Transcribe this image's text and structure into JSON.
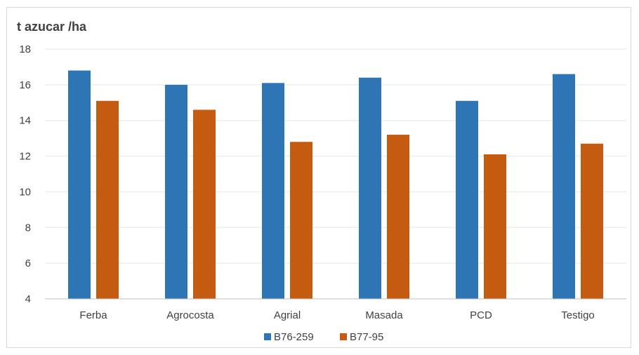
{
  "chart_data": {
    "type": "bar",
    "title": "",
    "xlabel": "",
    "ylabel": "t azucar /ha",
    "categories": [
      "Ferba",
      "Agrocosta",
      "Agrial",
      "Masada",
      "PCD",
      "Testigo"
    ],
    "series": [
      {
        "name": "B76-259",
        "color": "#2e75b6",
        "values": [
          16.8,
          16.0,
          16.1,
          16.4,
          15.1,
          16.6
        ]
      },
      {
        "name": "B77-95",
        "color": "#c55a11",
        "values": [
          15.1,
          14.6,
          12.8,
          13.2,
          12.1,
          12.7
        ]
      }
    ],
    "ylim": [
      4,
      18
    ],
    "yticks": [
      4,
      6,
      8,
      10,
      12,
      14,
      16,
      18
    ],
    "grid": true,
    "legend_position": "bottom"
  }
}
